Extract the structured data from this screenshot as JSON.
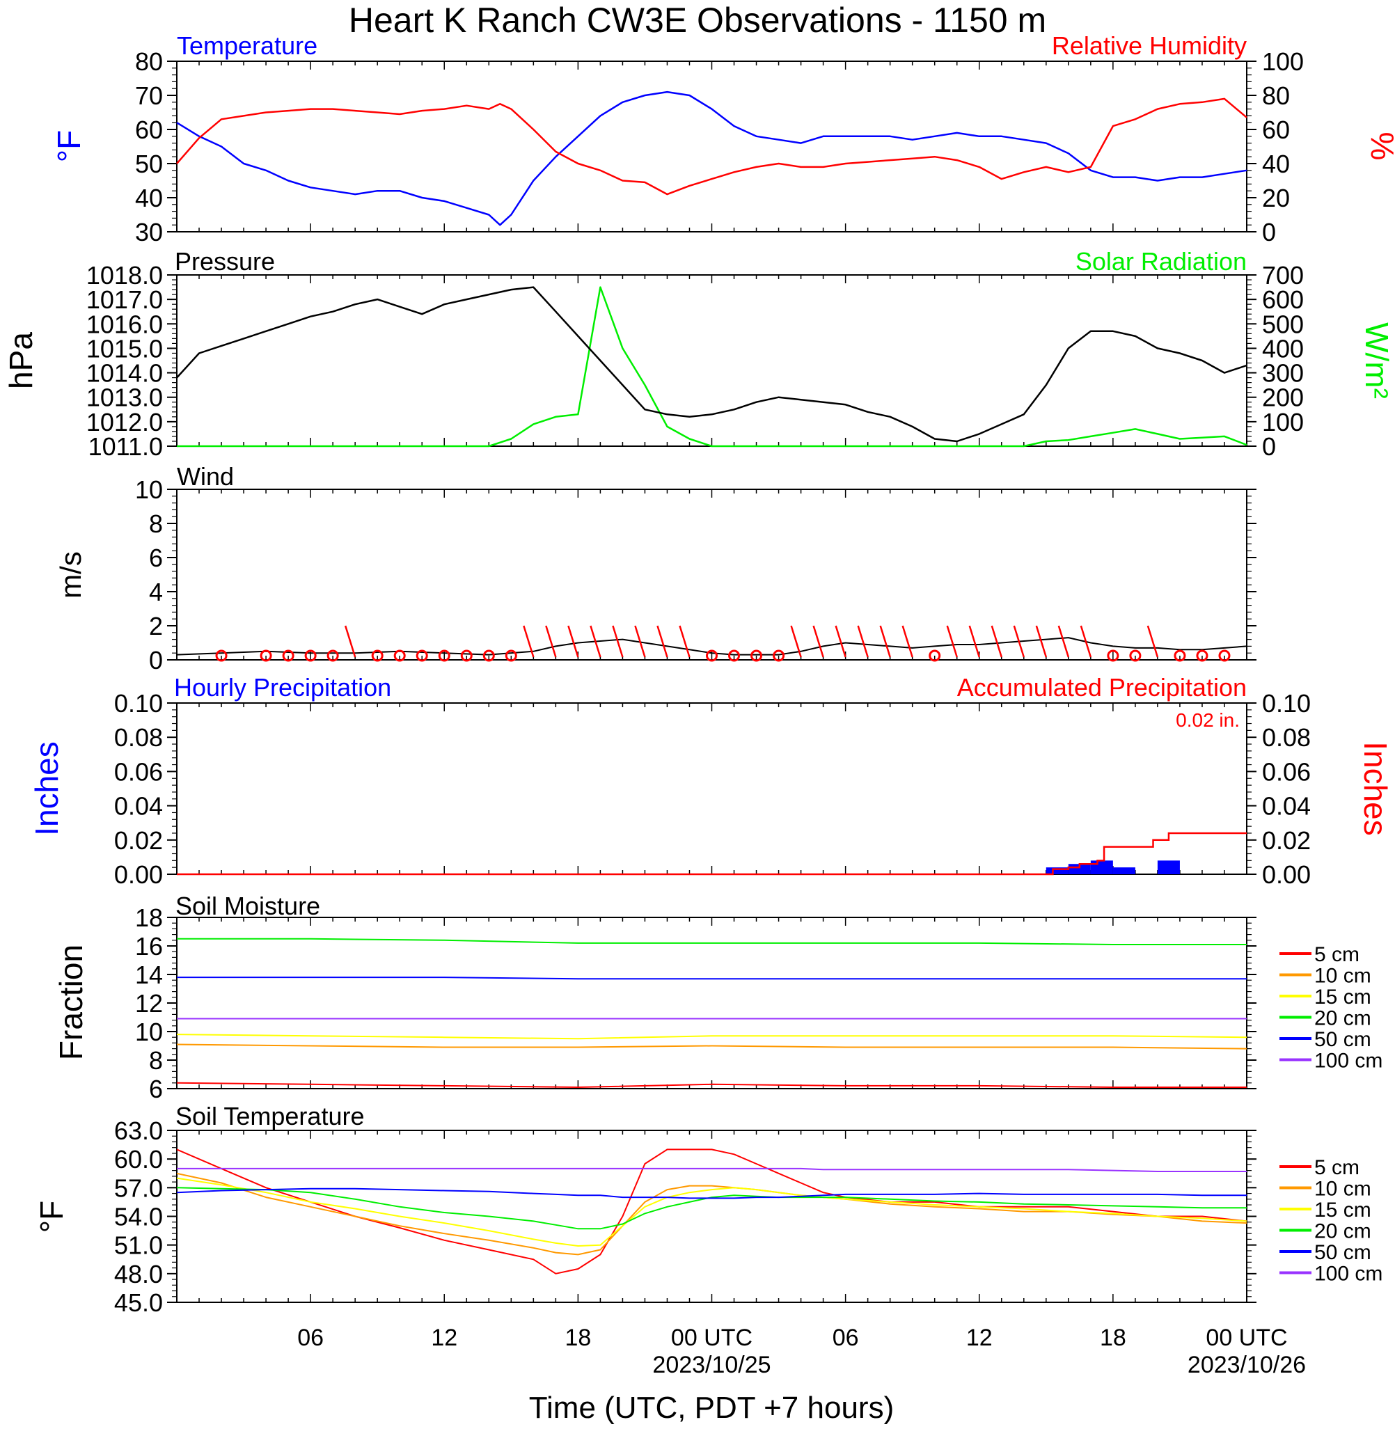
{
  "title": "Heart K Ranch CW3E Observations - 1150 m",
  "x_axis": {
    "label": "Time (UTC, PDT +7 hours)",
    "range_hours": [
      0,
      48
    ],
    "tick_labels": [
      "06",
      "12",
      "18",
      "00 UTC",
      "06",
      "12",
      "18",
      "00 UTC"
    ],
    "date_labels": [
      "2023/10/25",
      "2023/10/26"
    ]
  },
  "colors": {
    "temperature": "#0000ff",
    "humidity": "#ff0000",
    "pressure": "#000000",
    "solar": "#00ee00",
    "wind": "#000000",
    "wind_barb": "#ff0000",
    "hourly_precip": "#0000ff",
    "accum_precip": "#ff0000",
    "depth_5": "#ff0000",
    "depth_10": "#ff9900",
    "depth_15": "#ffff00",
    "depth_20": "#00ee00",
    "depth_50": "#0000ff",
    "depth_100": "#9933ff"
  },
  "legend_depths": [
    "5 cm",
    "10 cm",
    "15 cm",
    "20 cm",
    "50 cm",
    "100 cm"
  ],
  "chart_data": [
    {
      "type": "line",
      "panel": "temperature_humidity",
      "left_title": "Temperature",
      "right_title": "Relative Humidity",
      "ylabel_left": "°F",
      "ylabel_right": "%",
      "ylim_left": [
        30,
        80
      ],
      "ylim_right": [
        0,
        100
      ],
      "yticks_left": [
        "80",
        "70",
        "60",
        "50",
        "40",
        "30"
      ],
      "yticks_right": [
        "100",
        "80",
        "60",
        "40",
        "20",
        "0"
      ],
      "x_hours": [
        0,
        1,
        2,
        3,
        4,
        5,
        6,
        7,
        8,
        9,
        10,
        11,
        12,
        13,
        14,
        14.5,
        15,
        16,
        17,
        18,
        19,
        20,
        21,
        22,
        23,
        24,
        25,
        26,
        27,
        28,
        29,
        30,
        31,
        32,
        33,
        34,
        35,
        36,
        37,
        38,
        39,
        40,
        41,
        42,
        43,
        44,
        45,
        46,
        47,
        48
      ],
      "series": [
        {
          "name": "Temperature",
          "axis": "left",
          "values": [
            62,
            58,
            55,
            50,
            48,
            45,
            43,
            42,
            41,
            42,
            42,
            40,
            39,
            37,
            35,
            32,
            35,
            45,
            52,
            58,
            64,
            68,
            70,
            71,
            70,
            66,
            61,
            58,
            57,
            56,
            58,
            58,
            58,
            58,
            57,
            58,
            59,
            58,
            58,
            57,
            56,
            53,
            48,
            46,
            46,
            45,
            46,
            46,
            47,
            48
          ]
        },
        {
          "name": "Relative Humidity",
          "axis": "right",
          "values": [
            40,
            55,
            66,
            68,
            70,
            71,
            72,
            72,
            71,
            70,
            69,
            71,
            72,
            74,
            72,
            75,
            72,
            60,
            47,
            40,
            36,
            30,
            29,
            22,
            27,
            31,
            35,
            38,
            40,
            38,
            38,
            40,
            41,
            42,
            43,
            44,
            42,
            38,
            31,
            35,
            38,
            35,
            38,
            62,
            66,
            72,
            75,
            76,
            78,
            67
          ]
        }
      ]
    },
    {
      "type": "line",
      "panel": "pressure_solar",
      "left_title": "Pressure",
      "right_title": "Solar Radiation",
      "ylabel_left": "hPa",
      "ylabel_right": "W/m²",
      "ylim_left": [
        1011,
        1018
      ],
      "ylim_right": [
        0,
        700
      ],
      "yticks_left": [
        "1018.0",
        "1017.0",
        "1016.0",
        "1015.0",
        "1014.0",
        "1013.0",
        "1012.0",
        "1011.0"
      ],
      "yticks_right": [
        "700",
        "600",
        "500",
        "400",
        "300",
        "200",
        "100",
        "0"
      ],
      "x_hours": [
        0,
        1,
        2,
        3,
        4,
        5,
        6,
        7,
        8,
        9,
        10,
        11,
        12,
        13,
        14,
        15,
        16,
        17,
        18,
        19,
        20,
        21,
        22,
        23,
        24,
        25,
        26,
        27,
        28,
        29,
        30,
        31,
        32,
        33,
        34,
        35,
        36,
        37,
        38,
        39,
        40,
        41,
        42,
        43,
        44,
        45,
        46,
        47,
        48
      ],
      "series": [
        {
          "name": "Pressure",
          "axis": "left",
          "values": [
            1013.8,
            1014.8,
            1015.1,
            1015.4,
            1015.7,
            1016.0,
            1016.3,
            1016.5,
            1016.8,
            1017.0,
            1016.7,
            1016.4,
            1016.8,
            1017.0,
            1017.2,
            1017.4,
            1017.5,
            1016.5,
            1015.5,
            1014.5,
            1013.5,
            1012.5,
            1012.3,
            1012.2,
            1012.3,
            1012.5,
            1012.8,
            1013.0,
            1012.9,
            1012.8,
            1012.7,
            1012.4,
            1012.2,
            1011.8,
            1011.3,
            1011.2,
            1011.5,
            1011.9,
            1012.3,
            1013.5,
            1015.0,
            1015.7,
            1015.7,
            1015.5,
            1015.0,
            1014.8,
            1014.5,
            1014.0,
            1014.3
          ]
        },
        {
          "name": "Solar Radiation",
          "axis": "right",
          "values": [
            0,
            0,
            0,
            0,
            0,
            0,
            0,
            0,
            0,
            0,
            0,
            0,
            0,
            0,
            0,
            30,
            90,
            120,
            130,
            650,
            400,
            250,
            80,
            30,
            0,
            0,
            0,
            0,
            0,
            0,
            0,
            0,
            0,
            0,
            0,
            0,
            0,
            0,
            0,
            20,
            25,
            40,
            55,
            70,
            50,
            30,
            35,
            40,
            5
          ]
        }
      ]
    },
    {
      "type": "line",
      "panel": "wind",
      "left_title": "Wind",
      "ylabel_left": "m/s",
      "ylim_left": [
        0,
        10
      ],
      "yticks_left": [
        "10",
        "8",
        "6",
        "4",
        "2",
        "0"
      ],
      "x_hours": [
        0,
        2,
        4,
        6,
        8,
        10,
        12,
        14,
        16,
        17,
        18,
        19,
        20,
        21,
        22,
        23,
        24,
        25,
        26,
        27,
        28,
        29,
        30,
        31,
        32,
        33,
        34,
        35,
        36,
        37,
        38,
        39,
        40,
        41,
        42,
        43,
        44,
        45,
        46,
        47,
        48
      ],
      "series": [
        {
          "name": "Wind",
          "axis": "left",
          "values": [
            0.3,
            0.4,
            0.5,
            0.4,
            0.4,
            0.5,
            0.4,
            0.3,
            0.5,
            0.8,
            1.0,
            1.1,
            1.2,
            1.0,
            0.8,
            0.6,
            0.4,
            0.3,
            0.3,
            0.3,
            0.5,
            0.8,
            1.0,
            0.9,
            0.8,
            0.7,
            0.8,
            0.9,
            0.9,
            1.0,
            1.1,
            1.2,
            1.3,
            1.0,
            0.8,
            0.7,
            0.7,
            0.6,
            0.6,
            0.7,
            0.8
          ]
        }
      ],
      "barb_hours": [
        2,
        4,
        5,
        6,
        7,
        8,
        9,
        10,
        11,
        12,
        13,
        14,
        15,
        16,
        17,
        18,
        19,
        20,
        21,
        22,
        23,
        24,
        25,
        26,
        27,
        28,
        29,
        30,
        31,
        32,
        33,
        34,
        35,
        36,
        37,
        38,
        39,
        40,
        41,
        42,
        43,
        44,
        45,
        46,
        47
      ],
      "calm_hours": [
        2,
        4,
        5,
        6,
        7,
        9,
        10,
        11,
        12,
        13,
        14,
        15,
        24,
        25,
        26,
        27,
        34,
        42,
        43,
        45,
        46,
        47
      ]
    },
    {
      "type": "bar",
      "panel": "precipitation",
      "left_title": "Hourly Precipitation",
      "right_title": "Accumulated Precipitation",
      "annotation": "0.02 in.",
      "ylabel_left": "Inches",
      "ylabel_right": "Inches",
      "ylim_left": [
        0,
        0.1
      ],
      "ylim_right": [
        0,
        0.1
      ],
      "yticks_left": [
        "0.10",
        "0.08",
        "0.06",
        "0.04",
        "0.02",
        "0.00"
      ],
      "yticks_right": [
        "0.10",
        "0.08",
        "0.06",
        "0.04",
        "0.02",
        "0.00"
      ],
      "hourly": [
        {
          "hour": 39.5,
          "value": 0.004
        },
        {
          "hour": 40.5,
          "value": 0.006
        },
        {
          "hour": 41.5,
          "value": 0.008
        },
        {
          "hour": 42.5,
          "value": 0.004
        },
        {
          "hour": 44.5,
          "value": 0.008
        }
      ],
      "accumulated": {
        "x_hours": [
          0,
          39,
          39.3,
          40,
          40.5,
          41.3,
          41.6,
          43.5,
          43.8,
          44.5,
          48
        ],
        "values": [
          0,
          0,
          0.003,
          0.004,
          0.006,
          0.008,
          0.016,
          0.016,
          0.02,
          0.024,
          0.024
        ]
      }
    },
    {
      "type": "line",
      "panel": "soil_moisture",
      "left_title": "Soil Moisture",
      "ylabel_left": "Fraction",
      "ylim_left": [
        6,
        18
      ],
      "yticks_left": [
        "18",
        "16",
        "14",
        "12",
        "10",
        "8",
        "6"
      ],
      "x_hours": [
        0,
        6,
        12,
        18,
        24,
        30,
        36,
        42,
        48
      ],
      "series": [
        {
          "name": "5 cm",
          "values": [
            6.4,
            6.3,
            6.2,
            6.1,
            6.3,
            6.2,
            6.2,
            6.1,
            6.1
          ]
        },
        {
          "name": "10 cm",
          "values": [
            9.1,
            9.0,
            8.9,
            8.9,
            9.0,
            8.9,
            8.9,
            8.9,
            8.8
          ]
        },
        {
          "name": "15 cm",
          "values": [
            9.8,
            9.7,
            9.6,
            9.5,
            9.7,
            9.7,
            9.7,
            9.7,
            9.6
          ]
        },
        {
          "name": "20 cm",
          "values": [
            16.5,
            16.5,
            16.4,
            16.2,
            16.2,
            16.2,
            16.2,
            16.1,
            16.1
          ]
        },
        {
          "name": "50 cm",
          "values": [
            13.8,
            13.8,
            13.8,
            13.7,
            13.7,
            13.7,
            13.7,
            13.7,
            13.7
          ]
        },
        {
          "name": "100 cm",
          "values": [
            10.9,
            10.9,
            10.9,
            10.9,
            10.9,
            10.9,
            10.9,
            10.9,
            10.9
          ]
        }
      ]
    },
    {
      "type": "line",
      "panel": "soil_temperature",
      "left_title": "Soil Temperature",
      "ylabel_left": "°F",
      "ylim_left": [
        45,
        63
      ],
      "yticks_left": [
        "63.0",
        "60.0",
        "57.0",
        "54.0",
        "51.0",
        "48.0",
        "45.0"
      ],
      "x_hours": [
        0,
        2,
        4,
        6,
        8,
        10,
        12,
        14,
        16,
        17,
        18,
        19,
        20,
        21,
        22,
        23,
        24,
        25,
        26,
        27,
        28,
        29,
        30,
        32,
        34,
        36,
        38,
        40,
        42,
        44,
        46,
        48
      ],
      "series": [
        {
          "name": "5 cm",
          "values": [
            61.0,
            59.0,
            57.0,
            55.5,
            54.0,
            52.8,
            51.5,
            50.5,
            49.5,
            48.0,
            48.5,
            50.0,
            54.0,
            59.5,
            61.0,
            61.0,
            61.0,
            60.5,
            59.5,
            58.5,
            57.5,
            56.5,
            56.0,
            55.5,
            55.5,
            55.0,
            55.0,
            55.0,
            54.5,
            54.0,
            54.0,
            53.5
          ]
        },
        {
          "name": "10 cm",
          "values": [
            58.5,
            57.5,
            56.0,
            55.0,
            54.0,
            53.0,
            52.2,
            51.5,
            50.7,
            50.2,
            50.0,
            50.5,
            53.0,
            55.5,
            56.8,
            57.2,
            57.2,
            57.0,
            56.8,
            56.5,
            56.2,
            56.0,
            55.8,
            55.3,
            55.0,
            54.8,
            54.5,
            54.5,
            54.2,
            54.0,
            53.5,
            53.3
          ]
        },
        {
          "name": "15 cm",
          "values": [
            58.0,
            57.3,
            56.5,
            55.5,
            54.8,
            54.0,
            53.3,
            52.5,
            51.6,
            51.2,
            50.9,
            51.0,
            53.0,
            55.0,
            56.0,
            56.5,
            56.8,
            57.0,
            56.8,
            56.5,
            56.2,
            56.0,
            55.8,
            55.5,
            55.2,
            55.0,
            54.8,
            54.5,
            54.3,
            54.0,
            53.8,
            53.5
          ]
        },
        {
          "name": "20 cm",
          "values": [
            57.0,
            56.9,
            56.8,
            56.5,
            55.8,
            55.0,
            54.4,
            54.0,
            53.5,
            53.1,
            52.7,
            52.7,
            53.2,
            54.3,
            55.0,
            55.5,
            56.0,
            56.2,
            56.1,
            56.0,
            56.0,
            56.0,
            56.0,
            55.8,
            55.6,
            55.5,
            55.3,
            55.2,
            55.1,
            55.0,
            54.9,
            54.9
          ]
        },
        {
          "name": "50 cm",
          "values": [
            56.5,
            56.7,
            56.8,
            56.9,
            56.9,
            56.8,
            56.7,
            56.6,
            56.4,
            56.3,
            56.2,
            56.2,
            56.0,
            56.0,
            56.0,
            55.9,
            55.9,
            55.9,
            56.0,
            56.0,
            56.1,
            56.2,
            56.3,
            56.3,
            56.3,
            56.4,
            56.3,
            56.3,
            56.3,
            56.3,
            56.2,
            56.2
          ]
        },
        {
          "name": "100 cm",
          "values": [
            59.0,
            59.0,
            59.0,
            59.0,
            59.0,
            59.0,
            59.0,
            59.0,
            59.0,
            59.0,
            59.0,
            59.0,
            59.0,
            59.0,
            59.0,
            59.0,
            59.0,
            59.0,
            59.0,
            59.0,
            59.0,
            58.9,
            58.9,
            58.9,
            58.9,
            58.9,
            58.9,
            58.9,
            58.8,
            58.7,
            58.7,
            58.7
          ]
        }
      ]
    }
  ]
}
